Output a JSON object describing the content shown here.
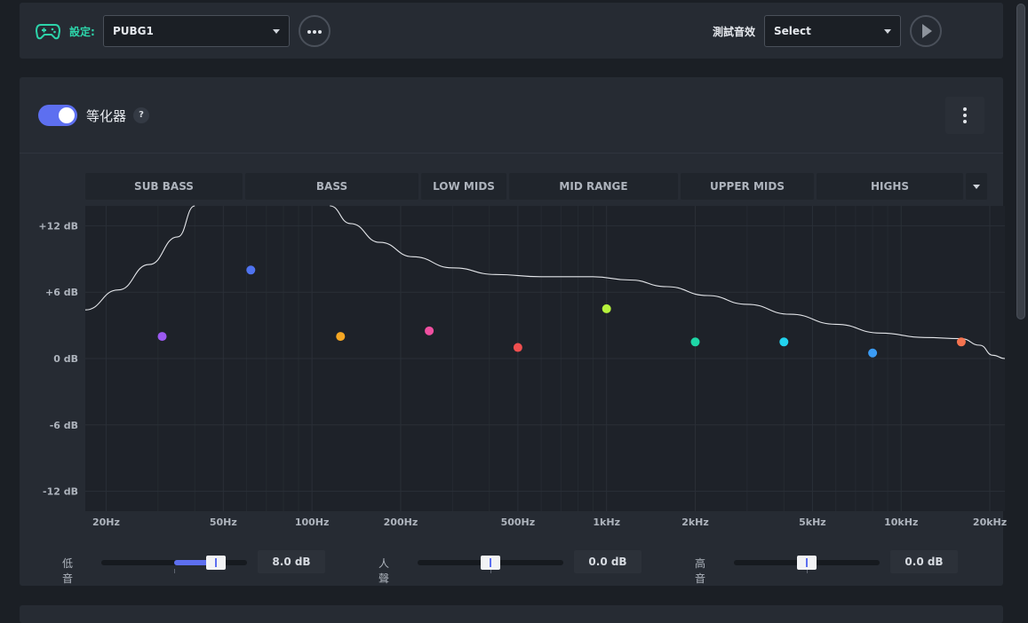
{
  "topbar": {
    "settings_label": "設定:",
    "profile_value": "PUBG1",
    "test_sound_label": "測試音效",
    "test_sound_value": "Select",
    "icons": {
      "controller": "gamepad-icon",
      "more": "more-horizontal-icon",
      "play": "play-icon"
    }
  },
  "equalizer": {
    "title": "等化器",
    "help": "?",
    "enabled": true,
    "bands": [
      "SUB BASS",
      "BASS",
      "LOW MIDS",
      "MID RANGE",
      "UPPER MIDS",
      "HIGHS"
    ]
  },
  "chart_data": {
    "type": "line",
    "y_ticks": [
      "+12 dB",
      "+6 dB",
      "0 dB",
      "-6 dB",
      "-12 dB"
    ],
    "ylim": [
      -13.8,
      13.8
    ],
    "x_ticks": [
      "20Hz",
      "50Hz",
      "100Hz",
      "200Hz",
      "500Hz",
      "1kHz",
      "2kHz",
      "5kHz",
      "10kHz",
      "20kHz"
    ],
    "x_tick_freqs": [
      20,
      50,
      100,
      200,
      500,
      1000,
      2000,
      5000,
      10000,
      20000
    ],
    "xlim": [
      17,
      22500
    ],
    "x_scale": "log",
    "points": [
      {
        "freq": 31,
        "gain": 2.0,
        "color": "#9b59f0"
      },
      {
        "freq": 62,
        "gain": 8.0,
        "color": "#4f73f0"
      },
      {
        "freq": 125,
        "gain": 2.0,
        "color": "#f5a623"
      },
      {
        "freq": 250,
        "gain": 2.5,
        "color": "#f04fa0"
      },
      {
        "freq": 500,
        "gain": 1.0,
        "color": "#f04f4f"
      },
      {
        "freq": 1000,
        "gain": 4.5,
        "color": "#b6f23c"
      },
      {
        "freq": 2000,
        "gain": 1.5,
        "color": "#1ed6a6"
      },
      {
        "freq": 4000,
        "gain": 1.5,
        "color": "#22d3ee"
      },
      {
        "freq": 8000,
        "gain": 0.5,
        "color": "#3b9cf5"
      },
      {
        "freq": 16000,
        "gain": 1.5,
        "color": "#f5734f"
      }
    ],
    "curve": [
      {
        "freq": 17,
        "gain": 4.4
      },
      {
        "freq": 22,
        "gain": 6.2
      },
      {
        "freq": 28,
        "gain": 8.5
      },
      {
        "freq": 35,
        "gain": 11.0
      },
      {
        "freq": 40,
        "gain": 13.8
      },
      {
        "freq": 115,
        "gain": 13.8
      },
      {
        "freq": 135,
        "gain": 12.2
      },
      {
        "freq": 170,
        "gain": 10.5
      },
      {
        "freq": 220,
        "gain": 9.2
      },
      {
        "freq": 300,
        "gain": 8.2
      },
      {
        "freq": 420,
        "gain": 7.6
      },
      {
        "freq": 600,
        "gain": 7.4
      },
      {
        "freq": 900,
        "gain": 7.4
      },
      {
        "freq": 1200,
        "gain": 7.1
      },
      {
        "freq": 1600,
        "gain": 6.5
      },
      {
        "freq": 2200,
        "gain": 5.7
      },
      {
        "freq": 3000,
        "gain": 4.9
      },
      {
        "freq": 4200,
        "gain": 4.0
      },
      {
        "freq": 6000,
        "gain": 3.1
      },
      {
        "freq": 8500,
        "gain": 2.3
      },
      {
        "freq": 12000,
        "gain": 1.9
      },
      {
        "freq": 16000,
        "gain": 1.8
      },
      {
        "freq": 18500,
        "gain": 1.2
      },
      {
        "freq": 20500,
        "gain": 0.3
      },
      {
        "freq": 22500,
        "gain": 0.0
      }
    ]
  },
  "sliders": [
    {
      "label": "低音",
      "value_text": "8.0 dB",
      "value": 8.0
    },
    {
      "label": "人聲",
      "value_text": "0.0 dB",
      "value": 0.0
    },
    {
      "label": "高音",
      "value_text": "0.0 dB",
      "value": 0.0
    }
  ],
  "slider_range": [
    -12,
    12
  ]
}
